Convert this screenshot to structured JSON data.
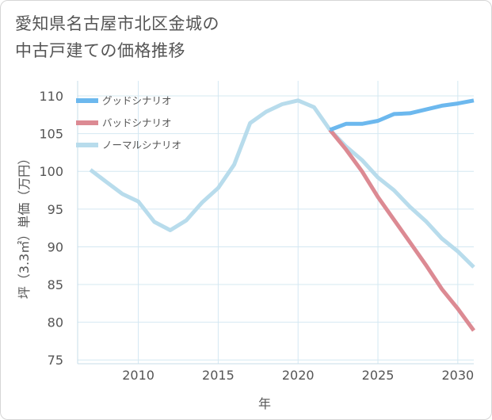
{
  "title_lines": [
    "愛知県名古屋市北区金城の",
    "中古戸建ての価格推移"
  ],
  "chart_data": {
    "type": "line",
    "xlabel": "年",
    "ylabel": "坪（3.3㎡）単価（万円）",
    "xlim": [
      2006.2,
      2031
    ],
    "ylim": [
      74.5,
      112
    ],
    "xticks": [
      2010,
      2015,
      2020,
      2025,
      2030
    ],
    "yticks": [
      75,
      80,
      85,
      90,
      95,
      100,
      105,
      110
    ],
    "grid": true,
    "legend_position": "top-left",
    "series": [
      {
        "name": "グッドシナリオ",
        "color": "#6cb8ee",
        "x": [
          2022,
          2023,
          2024,
          2025,
          2026,
          2027,
          2028,
          2029,
          2030,
          2031
        ],
        "y": [
          105.5,
          106.3,
          106.3,
          106.7,
          107.6,
          107.7,
          108.2,
          108.7,
          109.0,
          109.4
        ]
      },
      {
        "name": "バッドシナリオ",
        "color": "#dc8a93",
        "x": [
          2022,
          2023,
          2024,
          2025,
          2026,
          2027,
          2028,
          2029,
          2030,
          2031
        ],
        "y": [
          105.5,
          102.9,
          100.0,
          96.6,
          93.6,
          90.6,
          87.6,
          84.4,
          81.8,
          78.9
        ]
      },
      {
        "name": "ノーマルシナリオ",
        "color": "#b8dcec",
        "x": [
          2007,
          2008,
          2009,
          2010,
          2011,
          2012,
          2013,
          2014,
          2015,
          2016,
          2017,
          2018,
          2019,
          2020,
          2021,
          2022,
          2023,
          2024,
          2025,
          2026,
          2027,
          2028,
          2029,
          2030,
          2031
        ],
        "y": [
          100.2,
          98.6,
          97.0,
          96.0,
          93.3,
          92.2,
          93.5,
          95.9,
          97.8,
          100.9,
          106.4,
          107.9,
          108.9,
          109.4,
          108.5,
          105.5,
          103.3,
          101.5,
          99.2,
          97.5,
          95.3,
          93.4,
          91.1,
          89.4,
          87.3
        ]
      }
    ]
  }
}
